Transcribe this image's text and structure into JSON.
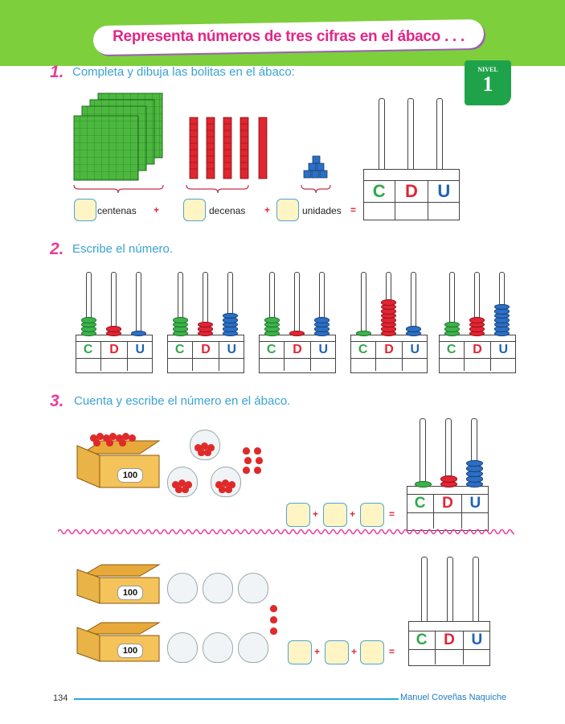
{
  "header": {
    "title": "Representa números de tres cifras en el ábaco . . ."
  },
  "level_badge": {
    "word": "NIVEL",
    "number": "1"
  },
  "section1": {
    "number": "1.",
    "instruction": "Completa y dibuja las bolitas en el ábaco:",
    "labels": {
      "centenas": "centenas",
      "decenas": "decenas",
      "unidades": "unidades"
    },
    "plus": "+",
    "equals": "="
  },
  "section2": {
    "number": "2.",
    "instruction": "Escribe el número."
  },
  "section3": {
    "number": "3.",
    "instruction": "Cuenta y escribe el número en el ábaco.",
    "box_label": "100",
    "plus": "+",
    "equals": "="
  },
  "abacus_labels": {
    "c": "C",
    "d": "D",
    "u": "U"
  },
  "abacus_values": {
    "s2": [
      [
        4,
        2,
        1
      ],
      [
        4,
        3,
        5
      ],
      [
        4,
        1,
        4
      ],
      [
        1,
        8,
        2
      ],
      [
        3,
        4,
        7
      ]
    ],
    "s3a": [
      1,
      2,
      5
    ]
  },
  "footer": {
    "page": "134",
    "author": "Manuel Coveñas Naquiche"
  },
  "colors": {
    "green": "#3cb34a",
    "red": "#e32434",
    "blue": "#2c6fc4",
    "accent": "#e32587",
    "text_blue": "#3aa3d5"
  }
}
